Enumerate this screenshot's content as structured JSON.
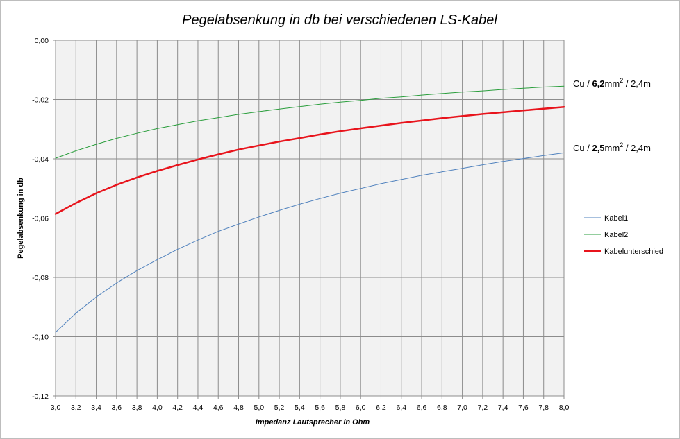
{
  "chart_data": {
    "type": "line",
    "title": "Pegelabsenkung in db bei verschiedenen LS-Kabel",
    "xlabel": "Impedanz  Lautsprecher  in  Ohm",
    "ylabel": "Pegelabsenkung  in  db",
    "xlim": [
      3.0,
      8.0
    ],
    "ylim": [
      -0.12,
      0.0
    ],
    "grid": true,
    "legend_position": "right",
    "x_ticks": [
      "3,0",
      "3,2",
      "3,4",
      "3,6",
      "3,8",
      "4,0",
      "4,2",
      "4,4",
      "4,6",
      "4,8",
      "5,0",
      "5,2",
      "5,4",
      "5,6",
      "5,8",
      "6,0",
      "6,2",
      "6,4",
      "6,6",
      "6,8",
      "7,0",
      "7,2",
      "7,4",
      "7,6",
      "7,8",
      "8,0"
    ],
    "y_ticks": [
      "0,00",
      "-0,02",
      "-0,04",
      "-0,06",
      "-0,08",
      "-0,10",
      "-0,12"
    ],
    "x": [
      3.0,
      3.2,
      3.4,
      3.6,
      3.8,
      4.0,
      4.2,
      4.4,
      4.6,
      4.8,
      5.0,
      5.2,
      5.4,
      5.6,
      5.8,
      6.0,
      6.2,
      6.4,
      6.6,
      6.8,
      7.0,
      7.2,
      7.4,
      7.6,
      7.8,
      8.0
    ],
    "series": [
      {
        "name": "Kabel1",
        "color": "#4f81bd",
        "width": 1,
        "values": [
          -0.0985,
          -0.0921,
          -0.0866,
          -0.0819,
          -0.0777,
          -0.074,
          -0.0705,
          -0.0674,
          -0.0645,
          -0.062,
          -0.0596,
          -0.0574,
          -0.0553,
          -0.0534,
          -0.0516,
          -0.05,
          -0.0484,
          -0.047,
          -0.0456,
          -0.0444,
          -0.0432,
          -0.042,
          -0.0409,
          -0.0399,
          -0.0389,
          -0.038
        ]
      },
      {
        "name": "Kabel2",
        "color": "#2a9e3c",
        "width": 1,
        "values": [
          -0.0398,
          -0.0373,
          -0.0351,
          -0.0331,
          -0.0314,
          -0.0298,
          -0.0285,
          -0.0272,
          -0.0261,
          -0.025,
          -0.0241,
          -0.0232,
          -0.0224,
          -0.0216,
          -0.0209,
          -0.0203,
          -0.0196,
          -0.0191,
          -0.0185,
          -0.018,
          -0.0175,
          -0.0171,
          -0.0166,
          -0.0162,
          -0.0158,
          -0.0155
        ]
      },
      {
        "name": "Kabelunterschied",
        "color": "#e8141c",
        "width": 2.5,
        "values": [
          -0.0586,
          -0.0549,
          -0.0516,
          -0.0488,
          -0.0463,
          -0.0441,
          -0.0421,
          -0.0402,
          -0.0385,
          -0.0369,
          -0.0355,
          -0.0342,
          -0.033,
          -0.0318,
          -0.0307,
          -0.0297,
          -0.0288,
          -0.0279,
          -0.0271,
          -0.0263,
          -0.0256,
          -0.0249,
          -0.0243,
          -0.0237,
          -0.0231,
          -0.0225
        ]
      }
    ],
    "annotations": [
      {
        "prefix": "Cu / ",
        "bold": "6,2",
        "unit": "mm",
        "sup": "2",
        "suffix": " / 2,4m",
        "y": -0.0145
      },
      {
        "prefix": "Cu / ",
        "bold": "2,5",
        "unit": "mm",
        "sup": "2",
        "suffix": " / 2,4m",
        "y": -0.0362
      }
    ]
  }
}
